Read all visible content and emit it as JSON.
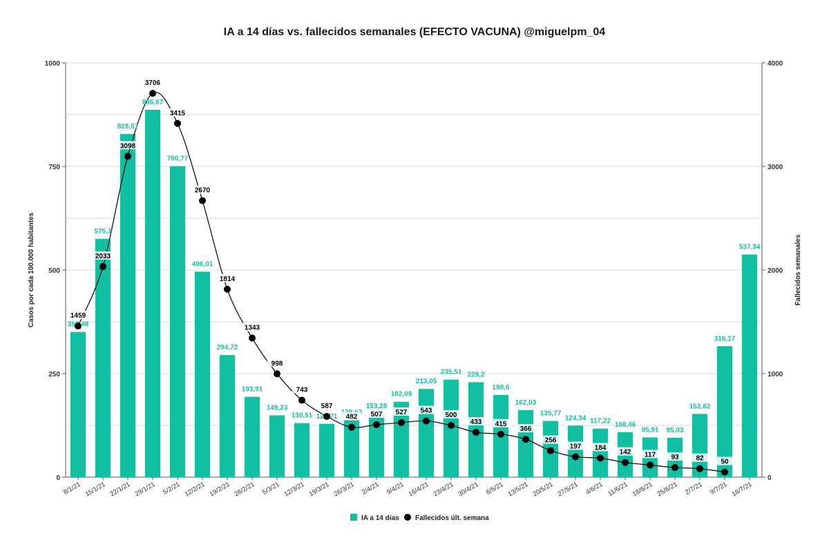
{
  "chart_data": {
    "type": "bar",
    "title": "IA a 14 días vs. fallecidos semanales (EFECTO VACUNA) @miguelpm_04",
    "ylabel_left": "Casos por  cada 100.000 habitantes",
    "ylabel_right": "Fallecidos semanales",
    "ylim_left": [
      0,
      1000
    ],
    "ylim_right": [
      0,
      4000
    ],
    "yticks_left": [
      "0",
      "250",
      "500",
      "750",
      "1000"
    ],
    "yticks_right": [
      "0",
      "1000",
      "2000",
      "3000",
      "4000"
    ],
    "grid": true,
    "legend_position": "bottom",
    "colors": {
      "bars": "#12BFA2",
      "line": "#000000",
      "bar_labels": "#12BFA2"
    },
    "categories": [
      "8/1/21",
      "15/1/21",
      "22/1/21",
      "29/1/21",
      "5/2/21",
      "12/2/21",
      "19/2/21",
      "26/2/21",
      "5/3/21",
      "12/3/21",
      "19/3/21",
      "26/3/21",
      "2/4/21",
      "9/4/21",
      "16/4/21",
      "23/4/21",
      "30/4/21",
      "6/5/21",
      "13/5/21",
      "20/5/21",
      "27/5/21",
      "4/6/21",
      "11/6/21",
      "18/6/21",
      "25/6/21",
      "2/7/21",
      "9/7/21",
      "16/7/21"
    ],
    "series": [
      {
        "name": "IA a 14 días",
        "type": "bar",
        "axis": "left",
        "values": [
          350.48,
          575.1,
          828.57,
          886.67,
          750.77,
          496.01,
          294.72,
          193.91,
          149.23,
          130.51,
          128.71,
          138.63,
          153.28,
          182.09,
          213.05,
          235.51,
          229.2,
          198.6,
          162.03,
          135.77,
          124.34,
          117.22,
          108.46,
          95.91,
          95.03,
          152.82,
          316.17,
          537.34
        ],
        "labels": [
          "350,48",
          "575,1",
          "828,57",
          "886,67",
          "750,77",
          "496,01",
          "294,72",
          "193,91",
          "149,23",
          "130,51",
          "128,71",
          "138,63",
          "153,28",
          "182,09",
          "213,05",
          "235,51",
          "229,2",
          "198,6",
          "162,03",
          "135,77",
          "124,34",
          "117,22",
          "108,46",
          "95,91",
          "95,03",
          "152,82",
          "316,17",
          "537,34"
        ]
      },
      {
        "name": "Fallecidos últ. semana",
        "type": "line",
        "axis": "right",
        "values": [
          1459,
          2033,
          3098,
          3706,
          3415,
          2670,
          1814,
          1343,
          998,
          743,
          587,
          482,
          507,
          527,
          543,
          500,
          433,
          415,
          366,
          256,
          197,
          184,
          142,
          117,
          93,
          82,
          50,
          null
        ],
        "labels": [
          "1459",
          "2033",
          "3098",
          "3706",
          "3415",
          "2670",
          "1814",
          "1343",
          "998",
          "743",
          "587",
          "482",
          "507",
          "527",
          "543",
          "500",
          "433",
          "415",
          "366",
          "256",
          "197",
          "184",
          "142",
          "117",
          "93",
          "82",
          "50",
          ""
        ]
      }
    ]
  }
}
